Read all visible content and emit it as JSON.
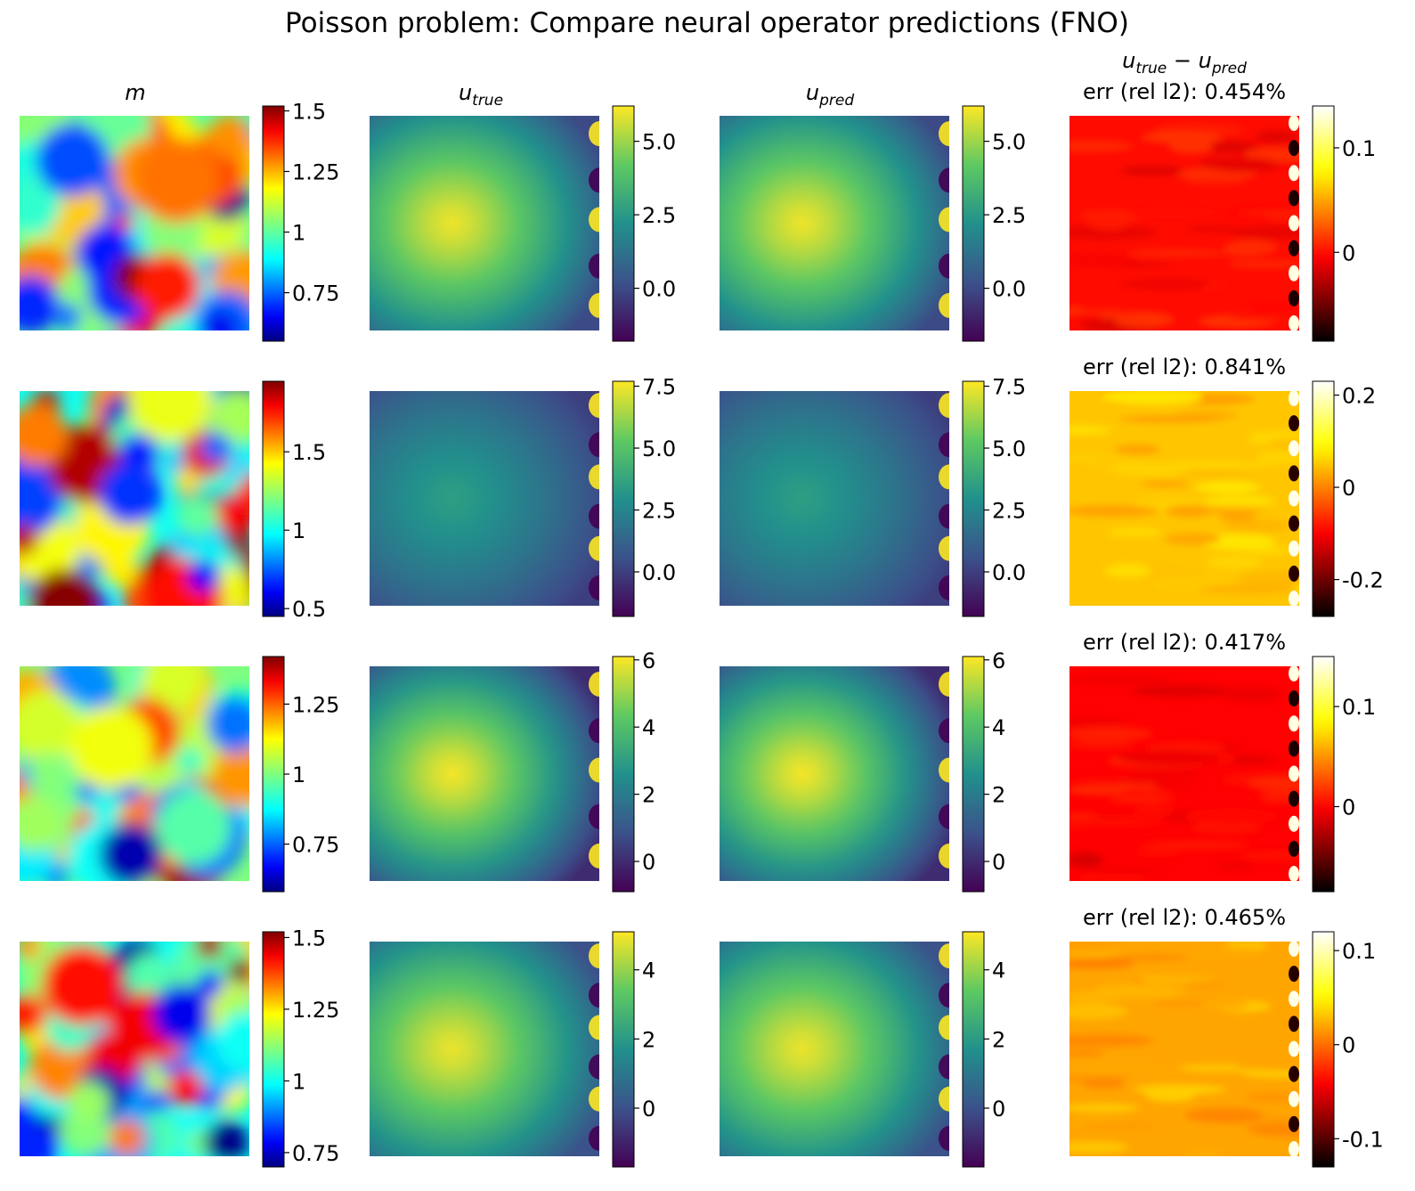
{
  "title": "Poisson problem: Compare neural operator predictions (FNO)",
  "chart_data": {
    "type": "heatmap",
    "layout": "4x4 grid of field images with colorbars",
    "columns": [
      {
        "id": "m",
        "title": "m",
        "colormap": "jet"
      },
      {
        "id": "u_true",
        "title": "u",
        "title_sub": "true",
        "colormap": "viridis"
      },
      {
        "id": "u_pred",
        "title": "u",
        "title_sub": "pred",
        "colormap": "viridis"
      },
      {
        "id": "diff",
        "title_main_a": "u",
        "title_sub_a": "true",
        "title_op": " − ",
        "title_main_b": "u",
        "title_sub_b": "pred",
        "colormap": "hot"
      }
    ],
    "rows": [
      {
        "err_label": "err (rel l2): 0.454%",
        "m": {
          "range": [
            0.55,
            1.52
          ],
          "ticks": [
            "1.5",
            "1.25",
            "1",
            "0.75"
          ],
          "tick_values": [
            1.5,
            1.25,
            1.0,
            0.75
          ]
        },
        "u_true": {
          "range": [
            -1.8,
            6.2
          ],
          "ticks": [
            "5.0",
            "2.5",
            "0.0"
          ],
          "tick_values": [
            5.0,
            2.5,
            0.0
          ],
          "peak": 6.0
        },
        "u_pred": {
          "range": [
            -1.8,
            6.2
          ],
          "ticks": [
            "5.0",
            "2.5",
            "0.0"
          ],
          "tick_values": [
            5.0,
            2.5,
            0.0
          ],
          "peak": 6.0
        },
        "diff": {
          "range": [
            -0.085,
            0.14
          ],
          "ticks": [
            "0.1",
            "0"
          ],
          "tick_values": [
            0.1,
            0.0
          ],
          "base": 0.0
        }
      },
      {
        "err_label": "err (rel l2): 0.841%",
        "m": {
          "range": [
            0.45,
            1.95
          ],
          "ticks": [
            "1.5",
            "1",
            "0.5"
          ],
          "tick_values": [
            1.5,
            1.0,
            0.5
          ]
        },
        "u_true": {
          "range": [
            -1.8,
            7.7
          ],
          "ticks": [
            "7.5",
            "5.0",
            "2.5",
            "0.0"
          ],
          "tick_values": [
            7.5,
            5.0,
            2.5,
            0.0
          ],
          "peak": 3.5
        },
        "u_pred": {
          "range": [
            -1.8,
            7.7
          ],
          "ticks": [
            "7.5",
            "5.0",
            "2.5",
            "0.0"
          ],
          "tick_values": [
            7.5,
            5.0,
            2.5,
            0.0
          ],
          "peak": 3.5
        },
        "diff": {
          "range": [
            -0.28,
            0.23
          ],
          "ticks": [
            "0.2",
            "0",
            "-0.2"
          ],
          "tick_values": [
            0.2,
            0.0,
            -0.2
          ],
          "base": 0.05
        }
      },
      {
        "err_label": "err (rel l2): 0.417%",
        "m": {
          "range": [
            0.58,
            1.42
          ],
          "ticks": [
            "1.25",
            "1",
            "0.75"
          ],
          "tick_values": [
            1.25,
            1.0,
            0.75
          ]
        },
        "u_true": {
          "range": [
            -0.9,
            6.1
          ],
          "ticks": [
            "6",
            "4",
            "2",
            "0"
          ],
          "tick_values": [
            6,
            4,
            2,
            0
          ],
          "peak": 6.0
        },
        "u_pred": {
          "range": [
            -0.9,
            6.1
          ],
          "ticks": [
            "6",
            "4",
            "2",
            "0"
          ],
          "tick_values": [
            6,
            4,
            2,
            0
          ],
          "peak": 6.0
        },
        "diff": {
          "range": [
            -0.085,
            0.15
          ],
          "ticks": [
            "0.1",
            "0"
          ],
          "tick_values": [
            0.1,
            0.0
          ],
          "base": 0.0
        }
      },
      {
        "err_label": "err (rel l2): 0.465%",
        "m": {
          "range": [
            0.7,
            1.52
          ],
          "ticks": [
            "1.5",
            "1.25",
            "1",
            "0.75"
          ],
          "tick_values": [
            1.5,
            1.25,
            1.0,
            0.75
          ]
        },
        "u_true": {
          "range": [
            -1.7,
            5.1
          ],
          "ticks": [
            "4",
            "2",
            "0"
          ],
          "tick_values": [
            4,
            2,
            0
          ],
          "peak": 4.9
        },
        "u_pred": {
          "range": [
            -1.7,
            5.1
          ],
          "ticks": [
            "4",
            "2",
            "0"
          ],
          "tick_values": [
            4,
            2,
            0
          ],
          "peak": 4.9
        },
        "diff": {
          "range": [
            -0.13,
            0.12
          ],
          "ticks": [
            "0.1",
            "0",
            "-0.1"
          ],
          "tick_values": [
            0.1,
            0.0,
            -0.1
          ],
          "base": 0.02
        }
      }
    ]
  }
}
